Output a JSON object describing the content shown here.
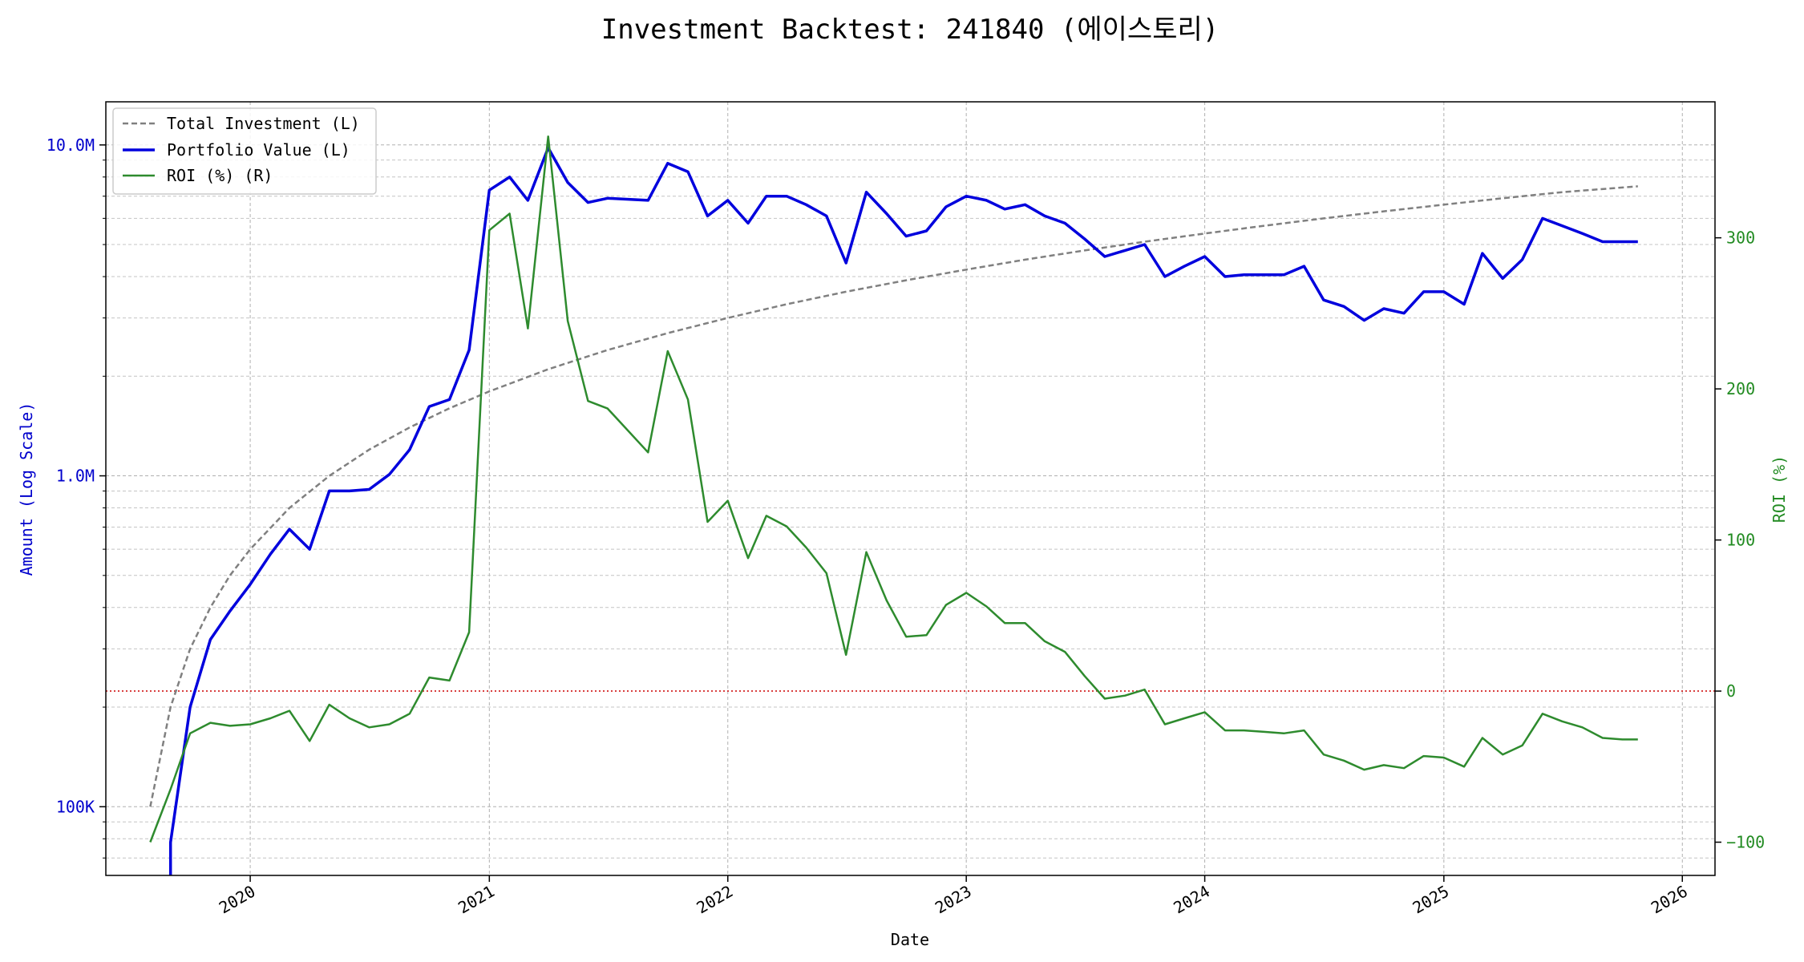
{
  "chart_data": {
    "type": "line",
    "title": "Investment Backtest: 241840 (에이스토리)",
    "xlabel": "Date",
    "ylabel_left": "Amount (Log Scale)",
    "ylabel_right": "ROI (%)",
    "y_left_scale": "log",
    "y_left_range": [
      62000,
      13500000
    ],
    "y_right_range": [
      -122,
      390
    ],
    "x_range": [
      "2019-05-25",
      "2026-02-20"
    ],
    "x_ticks": [
      "2020",
      "2021",
      "2022",
      "2023",
      "2024",
      "2025",
      "2026"
    ],
    "y_left_ticks": [
      {
        "value": 100000,
        "label": "100K"
      },
      {
        "value": 1000000,
        "label": "1.0M"
      },
      {
        "value": 10000000,
        "label": "10.0M"
      }
    ],
    "y_right_ticks": [
      {
        "value": -100,
        "label": "−100"
      },
      {
        "value": 0,
        "label": "0"
      },
      {
        "value": 100,
        "label": "100"
      },
      {
        "value": 200,
        "label": "200"
      },
      {
        "value": 300,
        "label": "300"
      }
    ],
    "zero_line": {
      "value": 0,
      "axis": "right",
      "color": "#cc0000"
    },
    "grid": true,
    "legend_position": "top-left",
    "series": [
      {
        "name": "Total Investment (L)",
        "axis": "left",
        "style": "dashed",
        "color": "#808080",
        "x": [
          "2019-08-01",
          "2019-09-01",
          "2019-10-01",
          "2019-11-01",
          "2019-12-01",
          "2020-01-01",
          "2020-03-01",
          "2020-05-01",
          "2020-07-01",
          "2020-09-01",
          "2020-11-01",
          "2021-01-01",
          "2021-04-01",
          "2021-07-01",
          "2021-10-01",
          "2022-01-01",
          "2022-04-01",
          "2022-07-01",
          "2022-10-01",
          "2023-01-01",
          "2023-04-01",
          "2023-07-01",
          "2023-10-01",
          "2024-01-01",
          "2024-04-01",
          "2024-07-01",
          "2024-10-01",
          "2025-01-01",
          "2025-04-01",
          "2025-07-01",
          "2025-10-25"
        ],
        "values": [
          100000,
          200000,
          300000,
          400000,
          500000,
          600000,
          800000,
          1000000,
          1200000,
          1400000,
          1600000,
          1800000,
          2100000,
          2400000,
          2700000,
          3000000,
          3300000,
          3600000,
          3900000,
          4200000,
          4500000,
          4800000,
          5100000,
          5400000,
          5700000,
          6000000,
          6300000,
          6600000,
          6900000,
          7200000,
          7500000
        ]
      },
      {
        "name": "Portfolio Value (L)",
        "axis": "left",
        "style": "solid",
        "color": "#0000dd",
        "x": [
          "2019-09-01",
          "2019-09-01",
          "2019-10-01",
          "2019-11-01",
          "2019-12-01",
          "2020-01-01",
          "2020-02-01",
          "2020-03-01",
          "2020-04-01",
          "2020-05-01",
          "2020-06-01",
          "2020-07-01",
          "2020-08-01",
          "2020-09-01",
          "2020-10-01",
          "2020-11-01",
          "2020-12-01",
          "2021-01-01",
          "2021-02-01",
          "2021-03-01",
          "2021-04-01",
          "2021-05-01",
          "2021-06-01",
          "2021-07-01",
          "2021-09-01",
          "2021-10-01",
          "2021-11-01",
          "2021-12-01",
          "2022-01-01",
          "2022-02-01",
          "2022-03-01",
          "2022-04-01",
          "2022-05-01",
          "2022-06-01",
          "2022-07-01",
          "2022-08-01",
          "2022-09-01",
          "2022-10-01",
          "2022-11-01",
          "2022-12-01",
          "2023-01-01",
          "2023-02-01",
          "2023-03-01",
          "2023-04-01",
          "2023-05-01",
          "2023-06-01",
          "2023-07-01",
          "2023-08-01",
          "2023-09-01",
          "2023-10-01",
          "2023-11-01",
          "2023-12-01",
          "2024-01-01",
          "2024-02-01",
          "2024-03-01",
          "2024-04-01",
          "2024-05-01",
          "2024-06-01",
          "2024-07-01",
          "2024-08-01",
          "2024-09-01",
          "2024-10-01",
          "2024-11-01",
          "2024-12-01",
          "2025-01-01",
          "2025-02-01",
          "2025-03-01",
          "2025-04-01",
          "2025-05-01",
          "2025-06-01",
          "2025-07-01",
          "2025-08-01",
          "2025-09-01",
          "2025-10-01",
          "2025-10-25"
        ],
        "values": [
          50000,
          78000,
          200000,
          320000,
          390000,
          470000,
          580000,
          690000,
          600000,
          900000,
          900000,
          910000,
          1010000,
          1200000,
          1620000,
          1700000,
          2400000,
          7300000,
          8000000,
          6800000,
          9800000,
          7700000,
          6700000,
          6900000,
          6800000,
          8800000,
          8300000,
          6100000,
          6800000,
          5800000,
          7000000,
          7000000,
          6600000,
          6100000,
          4400000,
          7200000,
          6200000,
          5300000,
          5500000,
          6500000,
          7000000,
          6800000,
          6400000,
          6600000,
          6100000,
          5800000,
          5200000,
          4600000,
          4800000,
          5000000,
          4000000,
          4300000,
          4600000,
          4000000,
          4050000,
          4050000,
          4050000,
          4300000,
          3400000,
          3250000,
          2950000,
          3200000,
          3100000,
          3600000,
          3600000,
          3300000,
          4700000,
          3950000,
          4500000,
          6000000,
          5700000,
          5400000,
          5100000,
          5100000,
          5100000
        ]
      },
      {
        "name": "ROI (%) (R)",
        "axis": "right",
        "style": "solid",
        "color": "#2e8b2e",
        "x": [
          "2019-08-01",
          "2019-09-01",
          "2019-10-01",
          "2019-11-01",
          "2019-12-01",
          "2020-01-01",
          "2020-02-01",
          "2020-03-01",
          "2020-04-01",
          "2020-05-01",
          "2020-06-01",
          "2020-07-01",
          "2020-08-01",
          "2020-09-01",
          "2020-10-01",
          "2020-11-01",
          "2020-12-01",
          "2021-01-01",
          "2021-02-01",
          "2021-03-01",
          "2021-04-01",
          "2021-05-01",
          "2021-06-01",
          "2021-07-01",
          "2021-09-01",
          "2021-10-01",
          "2021-11-01",
          "2021-12-01",
          "2022-01-01",
          "2022-02-01",
          "2022-03-01",
          "2022-04-01",
          "2022-05-01",
          "2022-06-01",
          "2022-07-01",
          "2022-08-01",
          "2022-09-01",
          "2022-10-01",
          "2022-11-01",
          "2022-12-01",
          "2023-01-01",
          "2023-02-01",
          "2023-03-01",
          "2023-04-01",
          "2023-05-01",
          "2023-06-01",
          "2023-07-01",
          "2023-08-01",
          "2023-09-01",
          "2023-10-01",
          "2023-11-01",
          "2023-12-01",
          "2024-01-01",
          "2024-02-01",
          "2024-03-01",
          "2024-04-01",
          "2024-05-01",
          "2024-06-01",
          "2024-07-01",
          "2024-08-01",
          "2024-09-01",
          "2024-10-01",
          "2024-11-01",
          "2024-12-01",
          "2025-01-01",
          "2025-02-01",
          "2025-03-01",
          "2025-04-01",
          "2025-05-01",
          "2025-06-01",
          "2025-07-01",
          "2025-08-01",
          "2025-09-01",
          "2025-10-01",
          "2025-10-25"
        ],
        "values": [
          -100,
          -65,
          -28,
          -21,
          -23,
          -22,
          -18,
          -13,
          -33,
          -9,
          -18,
          -24,
          -22,
          -15,
          9,
          7,
          39,
          305,
          316,
          240,
          367,
          245,
          192,
          187,
          158,
          225,
          193,
          112,
          126,
          88,
          116,
          109,
          95,
          78,
          24,
          92,
          60,
          36,
          37,
          57,
          65,
          56,
          45,
          45,
          33,
          26,
          10,
          -5,
          -3,
          1,
          -22,
          -18,
          -14,
          -26,
          -26,
          -27,
          -28,
          -26,
          -42,
          -46,
          -52,
          -49,
          -51,
          -43,
          -44,
          -50,
          -31,
          -42,
          -36,
          -15,
          -20,
          -24,
          -31,
          -32,
          -32
        ]
      }
    ]
  }
}
